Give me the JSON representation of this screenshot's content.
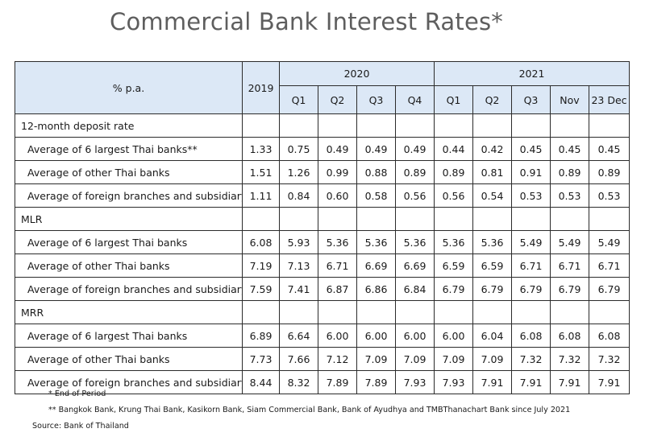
{
  "title": "Commercial Bank Interest Rates*",
  "header": {
    "unit": "% p.a.",
    "col_2019": "2019",
    "group_2020": "2020",
    "group_2021": "2021",
    "quarters_2020": [
      "Q1",
      "Q2",
      "Q3",
      "Q4"
    ],
    "periods_2021": [
      "Q1",
      "Q2",
      "Q3",
      "Nov",
      "23 Dec"
    ]
  },
  "sections": [
    {
      "name": "12-month deposit rate",
      "rows": [
        {
          "label": "Average of 6 largest Thai banks**",
          "values": [
            "1.33",
            "0.75",
            "0.49",
            "0.49",
            "0.49",
            "0.44",
            "0.42",
            "0.45",
            "0.45",
            "0.45"
          ]
        },
        {
          "label": "Average of other Thai banks",
          "values": [
            "1.51",
            "1.26",
            "0.99",
            "0.88",
            "0.89",
            "0.89",
            "0.81",
            "0.91",
            "0.89",
            "0.89"
          ]
        },
        {
          "label": "Average of foreign branches and subsidiary",
          "values": [
            "1.11",
            "0.84",
            "0.60",
            "0.58",
            "0.56",
            "0.56",
            "0.54",
            "0.53",
            "0.53",
            "0.53"
          ]
        }
      ]
    },
    {
      "name": "MLR",
      "rows": [
        {
          "label": "Average of 6 largest Thai banks",
          "values": [
            "6.08",
            "5.93",
            "5.36",
            "5.36",
            "5.36",
            "5.36",
            "5.36",
            "5.49",
            "5.49",
            "5.49"
          ]
        },
        {
          "label": "Average of other Thai banks",
          "values": [
            "7.19",
            "7.13",
            "6.71",
            "6.69",
            "6.69",
            "6.59",
            "6.59",
            "6.71",
            "6.71",
            "6.71"
          ]
        },
        {
          "label": "Average of foreign branches and subsidiary",
          "values": [
            "7.59",
            "7.41",
            "6.87",
            "6.86",
            "6.84",
            "6.79",
            "6.79",
            "6.79",
            "6.79",
            "6.79"
          ]
        }
      ]
    },
    {
      "name": "MRR",
      "rows": [
        {
          "label": "Average of 6 largest Thai banks",
          "values": [
            "6.89",
            "6.64",
            "6.00",
            "6.00",
            "6.00",
            "6.00",
            "6.04",
            "6.08",
            "6.08",
            "6.08"
          ]
        },
        {
          "label": "Average of other Thai banks",
          "values": [
            "7.73",
            "7.66",
            "7.12",
            "7.09",
            "7.09",
            "7.09",
            "7.09",
            "7.32",
            "7.32",
            "7.32"
          ]
        },
        {
          "label": "Average of foreign branches and subsidiary",
          "values": [
            "8.44",
            "8.32",
            "7.89",
            "7.89",
            "7.93",
            "7.93",
            "7.91",
            "7.91",
            "7.91",
            "7.91"
          ]
        }
      ]
    }
  ],
  "notes": {
    "end_of_period": "* End of Period",
    "banks": "** Bangkok Bank, Krung Thai Bank, Kasikorn Bank, Siam Commercial Bank, Bank of Ayudhya and TMBThanachart Bank since July 2021",
    "source": "Source: Bank of Thailand"
  }
}
